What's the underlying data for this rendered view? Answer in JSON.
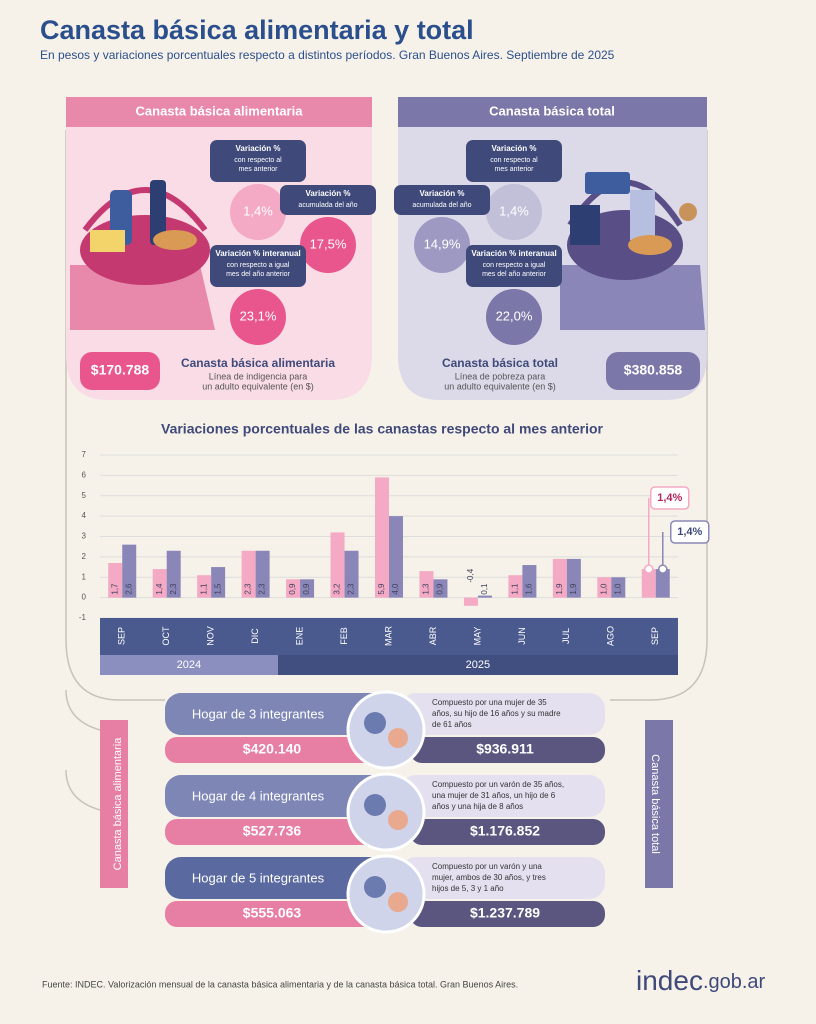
{
  "header": {
    "title": "Canasta básica alimentaria y total",
    "subtitle": "En pesos y variaciones porcentuales respecto a distintos períodos. Gran Buenos Aires. Septiembre de 2025"
  },
  "cards": [
    {
      "title": "Canasta básica alimentaria",
      "badges": [
        {
          "label": "Variación %",
          "note": [
            "con respecto al",
            "mes anterior"
          ],
          "value": "1,4%"
        },
        {
          "label": "Variación %",
          "note": [
            "acumulada del año"
          ],
          "value": "17,5%"
        },
        {
          "label": "Variación % interanual",
          "note": [
            "con respecto a igual",
            "mes del año anterior"
          ],
          "value": "23,1%"
        }
      ],
      "price": "$170.788",
      "name": "Canasta básica alimentaria",
      "description": [
        "Línea de indigencia para",
        "un adulto equivalente (en $)"
      ]
    },
    {
      "title": "Canasta básica total",
      "badges": [
        {
          "label": "Variación %",
          "note": [
            "con respecto al",
            "mes anterior"
          ],
          "value": "1,4%"
        },
        {
          "label": "Variación %",
          "note": [
            "acumulada del año"
          ],
          "value": "14,9%"
        },
        {
          "label": "Variación % interanual",
          "note": [
            "con respecto a igual",
            "mes del año anterior"
          ],
          "value": "22,0%"
        }
      ],
      "price": "$380.858",
      "name": "Canasta básica total",
      "description": [
        "Línea de pobreza para",
        "un adulto equivalente (en $)"
      ]
    }
  ],
  "chart_data": {
    "type": "bar",
    "title": "Variaciones porcentuales de las canastas respecto al mes anterior",
    "categories": [
      "SEP",
      "OCT",
      "NOV",
      "DIC",
      "ENE",
      "FEB",
      "MAR",
      "ABR",
      "MAY",
      "JUN",
      "JUL",
      "AGO",
      "SEP"
    ],
    "groups": [
      {
        "label": "2024",
        "span": 4
      },
      {
        "label": "2025",
        "span": 9
      }
    ],
    "series": [
      {
        "name": "Canasta básica alimentaria",
        "color": "#f4a9c4",
        "values": [
          1.7,
          1.4,
          1.1,
          2.3,
          0.9,
          3.2,
          5.9,
          1.3,
          -0.4,
          1.1,
          1.9,
          1.0,
          1.4
        ],
        "value_labels": [
          "1,7",
          "1,4",
          "1,1",
          "2,3",
          "0,9",
          "3,2",
          "5,9",
          "1,3",
          "-0,4",
          "1,1",
          "1,9",
          "1,0",
          "1,4%"
        ]
      },
      {
        "name": "Canasta básica total",
        "color": "#8a87b8",
        "values": [
          2.6,
          2.3,
          1.5,
          2.3,
          0.9,
          2.3,
          4.0,
          0.9,
          0.1,
          1.6,
          1.9,
          1.0,
          1.4
        ],
        "value_labels": [
          "2,6",
          "2,3",
          "1,5",
          "2,3",
          "0,9",
          "2,3",
          "4,0",
          "0,9",
          "0,1",
          "1,6",
          "1,9",
          "1,0",
          "1,4%"
        ]
      }
    ],
    "ylim": [
      -1,
      7
    ],
    "yticks": [
      -1,
      0,
      1,
      2,
      3,
      4,
      5,
      6,
      7
    ],
    "grid": true
  },
  "households": [
    {
      "title": "Hogar de 3 integrantes",
      "description": [
        "Compuesto por una mujer de 35",
        "años, su hijo de 16 años y su madre",
        "de 61 años"
      ],
      "cba": "$420.140",
      "cbt": "$936.911"
    },
    {
      "title": "Hogar de 4 integrantes",
      "description": [
        "Compuesto por un varón de 35 años,",
        "una mujer de 31 años, un hijo de 6",
        "años y una hija de 8 años"
      ],
      "cba": "$527.736",
      "cbt": "$1.176.852"
    },
    {
      "title": "Hogar de 5 integrantes",
      "description": [
        "Compuesto por un varón y una",
        "mujer, ambos de 30 años, y tres",
        "hijos de 5, 3 y 1 año"
      ],
      "cba": "$555.063",
      "cbt": "$1.237.789"
    }
  ],
  "footer": {
    "source": "Fuente: INDEC. Valorización mensual de la canasta básica alimentaria y de la canasta básica total. Gran Buenos Aires.",
    "logo": "indec",
    "domain": ".gob.ar"
  }
}
